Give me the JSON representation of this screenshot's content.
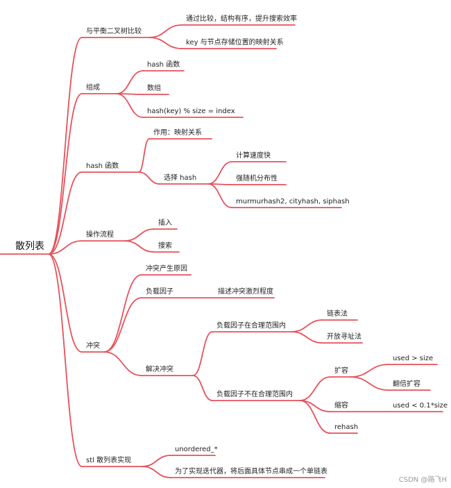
{
  "accent_color": "#e8505b",
  "watermark": "CSDN @路飞H",
  "root": {
    "id": "root",
    "label": "散列表",
    "children": [
      {
        "id": "n1",
        "label": "与平衡二叉树比较",
        "children": [
          {
            "id": "n1a",
            "label": "通过比较，结构有序，提升搜索效率"
          },
          {
            "id": "n1b",
            "label": "key 与节点存储位置的映射关系"
          }
        ]
      },
      {
        "id": "n2",
        "label": "组成",
        "children": [
          {
            "id": "n2a",
            "label": "hash 函数"
          },
          {
            "id": "n2b",
            "label": "数组"
          },
          {
            "id": "n2c",
            "label": "hash(key) % size = index"
          }
        ]
      },
      {
        "id": "n3",
        "label": "hash 函数",
        "children": [
          {
            "id": "n3a",
            "label": "作用：映射关系"
          },
          {
            "id": "n3b",
            "label": "选择 hash",
            "children": [
              {
                "id": "n3b1",
                "label": "计算速度快"
              },
              {
                "id": "n3b2",
                "label": "强随机分布性"
              },
              {
                "id": "n3b3",
                "label": "murmurhash2, cityhash,  siphash"
              }
            ]
          }
        ]
      },
      {
        "id": "n4",
        "label": "操作流程",
        "children": [
          {
            "id": "n4a",
            "label": "插入"
          },
          {
            "id": "n4b",
            "label": "搜索"
          }
        ]
      },
      {
        "id": "n5",
        "label": "冲突",
        "children": [
          {
            "id": "n5a",
            "label": "冲突产生原因"
          },
          {
            "id": "n5b",
            "label": "负载因子",
            "children": [
              {
                "id": "n5b1",
                "label": "描述冲突激烈程度"
              }
            ]
          },
          {
            "id": "n5c",
            "label": "解决冲突",
            "children": [
              {
                "id": "n5c1",
                "label": "负载因子在合理范围内",
                "children": [
                  {
                    "id": "n5c1a",
                    "label": "链表法"
                  },
                  {
                    "id": "n5c1b",
                    "label": "开放寻址法"
                  }
                ]
              },
              {
                "id": "n5c2",
                "label": "负载因子不在合理范围内",
                "children": [
                  {
                    "id": "n5c2a",
                    "label": "扩容",
                    "children": [
                      {
                        "id": "n5c2a1",
                        "label": "used > size"
                      },
                      {
                        "id": "n5c2a2",
                        "label": "翻倍扩容"
                      }
                    ]
                  },
                  {
                    "id": "n5c2b",
                    "label": "缩容",
                    "children": [
                      {
                        "id": "n5c2b1",
                        "label": "used < 0.1*size"
                      }
                    ]
                  },
                  {
                    "id": "n5c2c",
                    "label": "rehash"
                  }
                ]
              }
            ]
          }
        ]
      },
      {
        "id": "n6",
        "label": "stl 散列表实现",
        "children": [
          {
            "id": "n6a",
            "label": "unordered_*"
          },
          {
            "id": "n6b",
            "label": "为了实现迭代器，将后面具体节点串成一个单链表"
          }
        ]
      }
    ]
  }
}
